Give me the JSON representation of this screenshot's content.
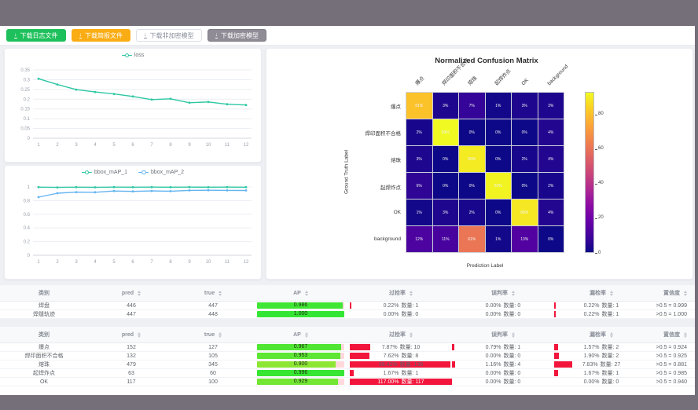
{
  "toolbar": {
    "buttons": [
      {
        "label": "下载日志文件",
        "variant": "green"
      },
      {
        "label": "下载简报文件",
        "variant": "orange"
      },
      {
        "label": "下载非加密模型",
        "variant": "plain"
      },
      {
        "label": "下载加密模型",
        "variant": "gray"
      }
    ],
    "download_icon": "↓"
  },
  "chart_data": [
    {
      "type": "line",
      "x": [
        "1",
        "2",
        "3",
        "4",
        "5",
        "6",
        "7",
        "8",
        "9",
        "10",
        "11",
        "12"
      ],
      "series": [
        {
          "name": "loss",
          "color": "#2ec7a3",
          "values": [
            0.305,
            0.275,
            0.249,
            0.237,
            0.227,
            0.214,
            0.198,
            0.202,
            0.182,
            0.186,
            0.174,
            0.17
          ]
        }
      ],
      "ylim": [
        0,
        0.35
      ],
      "y_ticks": [
        0,
        0.05,
        0.1,
        0.15,
        0.2,
        0.25,
        0.3,
        0.35
      ],
      "grid": true,
      "legend_position": "top"
    },
    {
      "type": "line",
      "x": [
        "1",
        "2",
        "3",
        "4",
        "5",
        "6",
        "7",
        "8",
        "9",
        "10",
        "11",
        "12"
      ],
      "series": [
        {
          "name": "bbox_mAP_1",
          "color": "#2ec7a3",
          "values": [
            0.996,
            0.993,
            0.997,
            0.994,
            0.998,
            0.996,
            0.998,
            0.996,
            0.998,
            0.997,
            0.998,
            0.997
          ]
        },
        {
          "name": "bbox_mAP_2",
          "color": "#63b4f0",
          "values": [
            0.85,
            0.908,
            0.924,
            0.922,
            0.94,
            0.935,
            0.941,
            0.938,
            0.95,
            0.952,
            0.95,
            0.948
          ]
        }
      ],
      "ylim": [
        0,
        1
      ],
      "y_ticks": [
        0,
        0.2,
        0.4,
        0.6,
        0.8,
        1
      ],
      "grid": true,
      "legend_position": "top"
    },
    {
      "type": "heatmap",
      "title": "Normalized Confusion Matrix",
      "xlabel": "Prediction Label",
      "ylabel": "Ground Truth Label",
      "labels": [
        "爆点",
        "焊印面积不合格",
        "熔珠",
        "起焊炸点",
        "OK",
        "background"
      ],
      "rows": [
        [
          81,
          3,
          7,
          1,
          3,
          3
        ],
        [
          2,
          93,
          0,
          0,
          0,
          4
        ],
        [
          3,
          0,
          90,
          0,
          2,
          4
        ],
        [
          6,
          0,
          0,
          92,
          0,
          2
        ],
        [
          1,
          3,
          2,
          0,
          89,
          4
        ],
        [
          12,
          11,
          61,
          1,
          13,
          0
        ]
      ],
      "value_suffix": "%",
      "vmax": 93,
      "colorbar_ticks": [
        0,
        20,
        40,
        60,
        80
      ],
      "colormap": "plasma"
    }
  ],
  "tables": {
    "headers": {
      "category": "类别",
      "pred": "pred",
      "true": "true",
      "ap": "AP",
      "over": "过检率",
      "mis": "误判率",
      "miss": "漏检率",
      "conf": "置信度"
    },
    "count_label": "数量:",
    "groups": [
      {
        "rows": [
          {
            "name": "焊盘",
            "pred": 446,
            "true": 447,
            "ap": 0.986,
            "over_rate": 0.22,
            "over_count": 1,
            "mis_rate": 0.0,
            "mis_count": 0,
            "miss_rate": 0.22,
            "miss_count": 1,
            "conf": ">0.5 = 0.999"
          },
          {
            "name": "焊缝轨迹",
            "pred": 447,
            "true": 448,
            "ap": 1.0,
            "over_rate": 0.0,
            "over_count": 0,
            "mis_rate": 0.0,
            "mis_count": 0,
            "miss_rate": 0.22,
            "miss_count": 1,
            "conf": ">0.5 = 1.000"
          }
        ]
      },
      {
        "rows": [
          {
            "name": "爆点",
            "pred": 152,
            "true": 127,
            "ap": 0.967,
            "over_rate": 7.87,
            "over_count": 10,
            "mis_rate": 0.79,
            "mis_count": 1,
            "miss_rate": 1.57,
            "miss_count": 2,
            "conf": ">0.5 = 0.924"
          },
          {
            "name": "焊印面积不合格",
            "pred": 132,
            "true": 105,
            "ap": 0.953,
            "over_rate": 7.62,
            "over_count": 8,
            "mis_rate": 0.0,
            "mis_count": 0,
            "miss_rate": 1.9,
            "miss_count": 2,
            "conf": ">0.5 = 0.925"
          },
          {
            "name": "熔珠",
            "pred": 479,
            "true": 345,
            "ap": 0.9,
            "over_rate": 39.42,
            "over_count": 136,
            "mis_rate": 1.16,
            "mis_count": 4,
            "miss_rate": 7.83,
            "miss_count": 27,
            "conf": ">0.5 = 0.881"
          },
          {
            "name": "起焊炸点",
            "pred": 63,
            "true": 60,
            "ap": 0.996,
            "over_rate": 1.67,
            "over_count": 1,
            "mis_rate": 0.0,
            "mis_count": 0,
            "miss_rate": 1.67,
            "miss_count": 1,
            "conf": ">0.5 = 0.985"
          },
          {
            "name": "OK",
            "pred": 117,
            "true": 100,
            "ap": 0.929,
            "over_rate": 117.0,
            "over_count": 117,
            "mis_rate": 0.0,
            "mis_count": 0,
            "miss_rate": 0.0,
            "miss_count": 0,
            "conf": ">0.5 = 0.940"
          }
        ]
      }
    ]
  },
  "colors": {
    "page_frame": "#756f7a",
    "content_bg": "#eef0f4",
    "rate_bar_red": "#f2163c",
    "ap_bar_track_pink": "#ffd9dc"
  }
}
